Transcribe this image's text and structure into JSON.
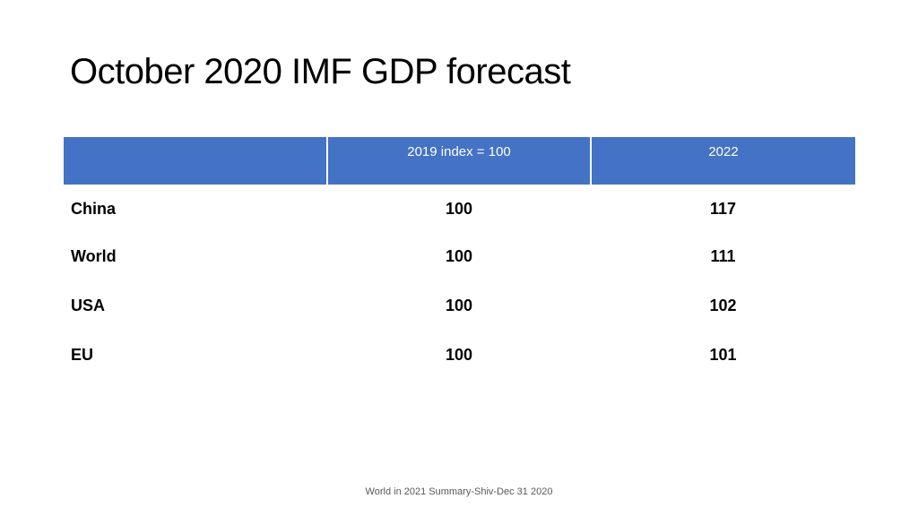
{
  "title": "October 2020 IMF GDP forecast",
  "table": {
    "header_color": "#4472C4",
    "header_text_color": "#FFFFFF",
    "headers": [
      "",
      "2019 index = 100",
      "2022"
    ],
    "rows": [
      {
        "label": "China",
        "values": [
          "100",
          "117"
        ]
      },
      {
        "label": "World",
        "values": [
          "100",
          "111"
        ]
      },
      {
        "label": "USA",
        "values": [
          "100",
          "102"
        ]
      },
      {
        "label": "EU",
        "values": [
          "100",
          "101"
        ]
      }
    ]
  },
  "footer": "World in 2021 Summary-Shiv-Dec 31 2020"
}
